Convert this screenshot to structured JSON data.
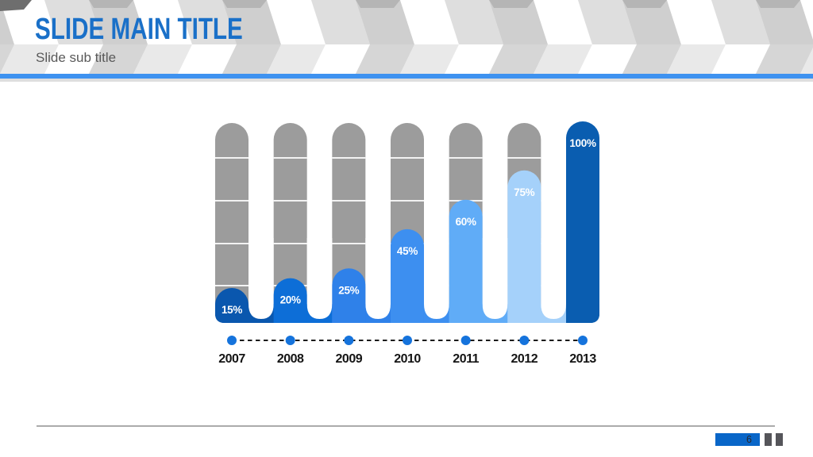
{
  "header": {
    "title": "SLIDE MAIN TITLE",
    "subtitle": "Slide sub title",
    "title_color": "#1A70C8",
    "accent_line_color": "#3E92F0"
  },
  "chart_data": {
    "type": "bar",
    "title": "",
    "xlabel": "",
    "ylabel": "",
    "ylim": [
      0,
      100
    ],
    "categories": [
      "2007",
      "2008",
      "2009",
      "2010",
      "2011",
      "2012",
      "2013"
    ],
    "values": [
      15,
      20,
      25,
      45,
      60,
      75,
      100
    ],
    "labels": [
      "15%",
      "20%",
      "25%",
      "45%",
      "60%",
      "75%",
      "100%"
    ],
    "value_suffix": "%",
    "series_colors": [
      "#0A57AE",
      "#0D6ED7",
      "#2F81E9",
      "#3D8FF0",
      "#60ACF7",
      "#A5D1FA",
      "#0A5DB0"
    ],
    "track_color": "#9C9C9C",
    "timeline_dot_color": "#1573DC",
    "timeline_line_color": "#1B1B1B",
    "year_label_color": "#141414",
    "grid": false,
    "legend_position": "none"
  },
  "footer": {
    "page_number": "6",
    "badge_color": "#0966C8"
  }
}
